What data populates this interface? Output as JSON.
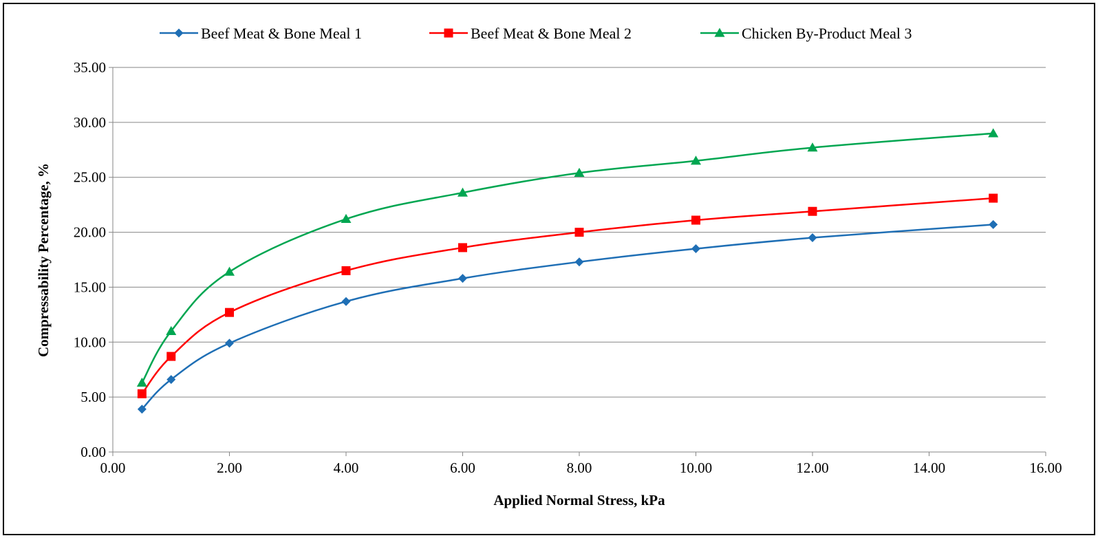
{
  "chart_data": {
    "type": "line",
    "title": "",
    "xlabel": "Applied Normal Stress, kPa",
    "ylabel": "Compressability Percentage, %",
    "xlim": [
      0,
      16
    ],
    "ylim": [
      0,
      35
    ],
    "x_ticks": [
      "0.00",
      "2.00",
      "4.00",
      "6.00",
      "8.00",
      "10.00",
      "12.00",
      "14.00",
      "16.00"
    ],
    "y_ticks": [
      "0.00",
      "5.00",
      "10.00",
      "15.00",
      "20.00",
      "25.00",
      "30.00",
      "35.00"
    ],
    "grid": "horizontal",
    "legend_position": "top",
    "smooth": true,
    "series": [
      {
        "name": "Beef Meat & Bone Meal 1",
        "color": "#1F6FB5",
        "marker": "diamond",
        "x": [
          0.5,
          1,
          2,
          4,
          6,
          8,
          10,
          12,
          15.1
        ],
        "y": [
          3.9,
          6.6,
          9.9,
          13.7,
          15.8,
          17.3,
          18.5,
          19.5,
          20.7
        ]
      },
      {
        "name": "Beef Meat & Bone Meal 2",
        "color": "#FF0000",
        "marker": "square",
        "x": [
          0.5,
          1,
          2,
          4,
          6,
          8,
          10,
          12,
          15.1
        ],
        "y": [
          5.3,
          8.7,
          12.7,
          16.5,
          18.6,
          20.0,
          21.1,
          21.9,
          23.1
        ]
      },
      {
        "name": "Chicken By-Product Meal 3",
        "color": "#00A651",
        "marker": "triangle",
        "x": [
          0.5,
          1,
          2,
          4,
          6,
          8,
          10,
          12,
          15.1
        ],
        "y": [
          6.3,
          11.0,
          16.4,
          21.2,
          23.6,
          25.4,
          26.5,
          27.7,
          29.0
        ]
      }
    ]
  }
}
